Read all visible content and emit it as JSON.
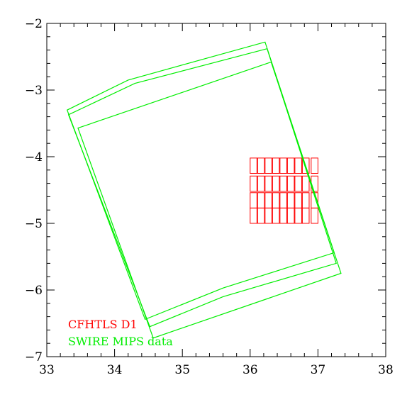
{
  "chart_data": {
    "type": "line",
    "title": "",
    "xlabel": "",
    "ylabel": "",
    "xlim": [
      33,
      38
    ],
    "ylim": [
      -7,
      -2
    ],
    "grid": false,
    "x_ticks": [
      "33",
      "34",
      "35",
      "36",
      "37",
      "38"
    ],
    "y_ticks": [
      "−2",
      "−3",
      "−4",
      "−5",
      "−6",
      "−7"
    ],
    "legend_position": "bottom-left",
    "series": [
      {
        "name": "CFHTLS D1",
        "color": "#ff0000",
        "shape": "rectangles",
        "rects": [
          {
            "x0": 36.0,
            "x1": 36.1,
            "y0": -4.25,
            "y1": -4.02
          },
          {
            "x0": 36.11,
            "x1": 36.21,
            "y0": -4.25,
            "y1": -4.02
          },
          {
            "x0": 36.22,
            "x1": 36.32,
            "y0": -4.25,
            "y1": -4.02
          },
          {
            "x0": 36.33,
            "x1": 36.43,
            "y0": -4.25,
            "y1": -4.02
          },
          {
            "x0": 36.44,
            "x1": 36.54,
            "y0": -4.25,
            "y1": -4.02
          },
          {
            "x0": 36.55,
            "x1": 36.65,
            "y0": -4.25,
            "y1": -4.02
          },
          {
            "x0": 36.66,
            "x1": 36.76,
            "y0": -4.25,
            "y1": -4.02
          },
          {
            "x0": 36.77,
            "x1": 36.87,
            "y0": -4.25,
            "y1": -4.02
          },
          {
            "x0": 36.9,
            "x1": 37.0,
            "y0": -4.25,
            "y1": -4.02
          },
          {
            "x0": 36.0,
            "x1": 36.1,
            "y0": -4.52,
            "y1": -4.29
          },
          {
            "x0": 36.11,
            "x1": 36.21,
            "y0": -4.52,
            "y1": -4.29
          },
          {
            "x0": 36.22,
            "x1": 36.32,
            "y0": -4.52,
            "y1": -4.29
          },
          {
            "x0": 36.33,
            "x1": 36.43,
            "y0": -4.52,
            "y1": -4.29
          },
          {
            "x0": 36.44,
            "x1": 36.54,
            "y0": -4.52,
            "y1": -4.29
          },
          {
            "x0": 36.55,
            "x1": 36.65,
            "y0": -4.52,
            "y1": -4.29
          },
          {
            "x0": 36.66,
            "x1": 36.76,
            "y0": -4.52,
            "y1": -4.29
          },
          {
            "x0": 36.77,
            "x1": 36.87,
            "y0": -4.52,
            "y1": -4.29
          },
          {
            "x0": 36.9,
            "x1": 37.0,
            "y0": -4.52,
            "y1": -4.29
          },
          {
            "x0": 36.0,
            "x1": 36.1,
            "y0": -4.77,
            "y1": -4.54
          },
          {
            "x0": 36.11,
            "x1": 36.21,
            "y0": -4.77,
            "y1": -4.54
          },
          {
            "x0": 36.22,
            "x1": 36.32,
            "y0": -4.77,
            "y1": -4.54
          },
          {
            "x0": 36.33,
            "x1": 36.43,
            "y0": -4.77,
            "y1": -4.54
          },
          {
            "x0": 36.44,
            "x1": 36.54,
            "y0": -4.77,
            "y1": -4.54
          },
          {
            "x0": 36.55,
            "x1": 36.65,
            "y0": -4.77,
            "y1": -4.54
          },
          {
            "x0": 36.66,
            "x1": 36.76,
            "y0": -4.77,
            "y1": -4.54
          },
          {
            "x0": 36.77,
            "x1": 36.87,
            "y0": -4.77,
            "y1": -4.54
          },
          {
            "x0": 36.9,
            "x1": 37.0,
            "y0": -4.77,
            "y1": -4.54
          },
          {
            "x0": 36.0,
            "x1": 36.1,
            "y0": -5.0,
            "y1": -4.77
          },
          {
            "x0": 36.11,
            "x1": 36.21,
            "y0": -5.0,
            "y1": -4.77
          },
          {
            "x0": 36.22,
            "x1": 36.32,
            "y0": -5.0,
            "y1": -4.77
          },
          {
            "x0": 36.33,
            "x1": 36.43,
            "y0": -5.0,
            "y1": -4.77
          },
          {
            "x0": 36.44,
            "x1": 36.54,
            "y0": -5.0,
            "y1": -4.77
          },
          {
            "x0": 36.55,
            "x1": 36.65,
            "y0": -5.0,
            "y1": -4.77
          },
          {
            "x0": 36.66,
            "x1": 36.76,
            "y0": -5.0,
            "y1": -4.77
          },
          {
            "x0": 36.77,
            "x1": 36.87,
            "y0": -5.0,
            "y1": -4.77
          },
          {
            "x0": 36.9,
            "x1": 37.0,
            "y0": -5.0,
            "y1": -4.77
          }
        ]
      },
      {
        "name": "SWIRE MIPS data",
        "color": "#00ee00",
        "shape": "polygons",
        "polygons": [
          [
            [
              33.3,
              -3.3
            ],
            [
              34.2,
              -2.85
            ],
            [
              36.22,
              -2.28
            ],
            [
              37.24,
              -5.44
            ],
            [
              35.6,
              -5.97
            ],
            [
              34.45,
              -6.44
            ]
          ],
          [
            [
              33.32,
              -3.37
            ],
            [
              34.3,
              -2.9
            ],
            [
              36.25,
              -2.38
            ],
            [
              37.27,
              -5.6
            ],
            [
              35.6,
              -6.1
            ],
            [
              34.52,
              -6.55
            ]
          ],
          [
            [
              33.46,
              -3.57
            ],
            [
              36.31,
              -2.58
            ],
            [
              37.34,
              -5.75
            ],
            [
              34.57,
              -6.72
            ]
          ]
        ]
      }
    ]
  }
}
